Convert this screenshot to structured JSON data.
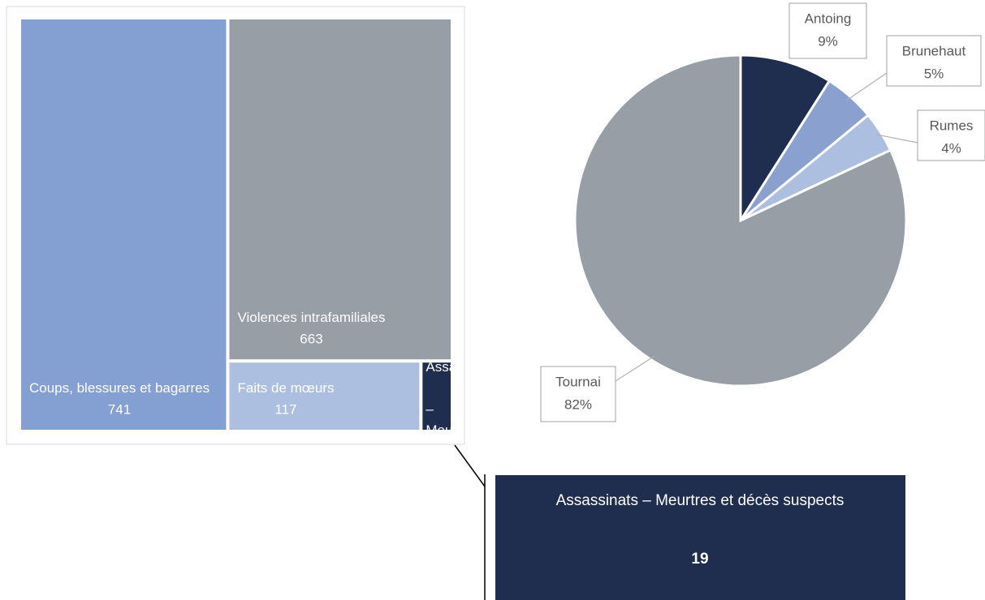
{
  "chart_data": [
    {
      "type": "treemap",
      "categories": [
        "Coups, blessures et bagarres",
        "Violences intrafamiliales",
        "Faits de mœurs",
        "Assassinats – Meurtres et décès suspects"
      ],
      "values": [
        741,
        663,
        117,
        19
      ],
      "colors": [
        "#849fd1",
        "#979ea6",
        "#adbfe0",
        "#1f2d4e"
      ]
    },
    {
      "type": "pie",
      "categories": [
        "Antoing",
        "Brunehaut",
        "Rumes",
        "Tournai"
      ],
      "values": [
        9,
        5,
        4,
        82
      ],
      "value_labels": [
        "9%",
        "5%",
        "4%",
        "82%"
      ],
      "colors": [
        "#1f2d4e",
        "#8aa1d0",
        "#adbfe0",
        "#979ea6"
      ]
    }
  ]
}
